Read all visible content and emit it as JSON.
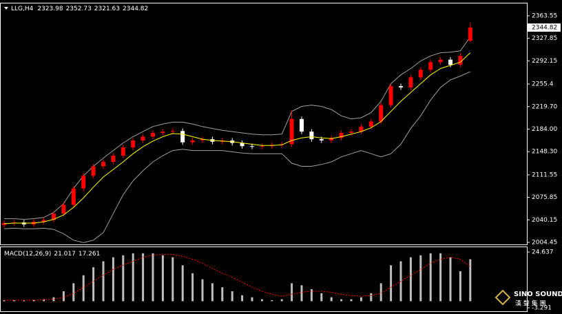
{
  "chart_data": [
    {
      "type": "candlestick",
      "title": "LLG,H4",
      "open": [
        2032,
        2035,
        2036,
        2033,
        2037,
        2040,
        2050,
        2064,
        2090,
        2110,
        2125,
        2132,
        2142,
        2155,
        2166,
        2172,
        2178,
        2180,
        2181,
        2163,
        2166,
        2168,
        2164,
        2166,
        2162,
        2157,
        2156,
        2157,
        2159,
        2160,
        2200,
        2180,
        2168,
        2166,
        2170,
        2178,
        2180,
        2188,
        2196,
        2222,
        2252,
        2250,
        2266,
        2278,
        2290,
        2294,
        2286,
        2323.98
      ],
      "high": [
        2039,
        2040,
        2040,
        2041,
        2044,
        2054,
        2068,
        2094,
        2114,
        2129,
        2136,
        2146,
        2159,
        2170,
        2176,
        2182,
        2184,
        2185,
        2185,
        2170,
        2172,
        2172,
        2170,
        2170,
        2166,
        2161,
        2161,
        2163,
        2164,
        2214,
        2204,
        2184,
        2172,
        2174,
        2182,
        2184,
        2192,
        2200,
        2226,
        2256,
        2256,
        2270,
        2282,
        2294,
        2298,
        2298,
        2304,
        2352.73
      ],
      "low": [
        2028,
        2031,
        2029,
        2029,
        2033,
        2036,
        2046,
        2060,
        2086,
        2106,
        2121,
        2128,
        2138,
        2151,
        2162,
        2168,
        2174,
        2176,
        2159,
        2159,
        2162,
        2160,
        2160,
        2158,
        2153,
        2152,
        2152,
        2153,
        2155,
        2156,
        2176,
        2164,
        2162,
        2162,
        2166,
        2174,
        2176,
        2184,
        2192,
        2218,
        2246,
        2246,
        2262,
        2274,
        2286,
        2282,
        2282,
        2321.63
      ],
      "close": [
        2035,
        2036,
        2033,
        2037,
        2040,
        2050,
        2064,
        2090,
        2110,
        2125,
        2132,
        2142,
        2155,
        2166,
        2172,
        2178,
        2180,
        2181,
        2163,
        2166,
        2168,
        2164,
        2166,
        2162,
        2157,
        2156,
        2157,
        2159,
        2160,
        2200,
        2180,
        2168,
        2166,
        2170,
        2178,
        2180,
        2188,
        2196,
        2222,
        2252,
        2250,
        2266,
        2278,
        2290,
        2294,
        2286,
        2300,
        2344.82
      ],
      "ma": [
        2034,
        2035,
        2035,
        2035,
        2037,
        2041,
        2048,
        2060,
        2075,
        2092,
        2108,
        2120,
        2132,
        2145,
        2156,
        2165,
        2172,
        2177,
        2176,
        2172,
        2168,
        2166,
        2165,
        2164,
        2162,
        2160,
        2158,
        2158,
        2159,
        2166,
        2170,
        2172,
        2170,
        2169,
        2172,
        2176,
        2180,
        2186,
        2196,
        2212,
        2228,
        2242,
        2256,
        2270,
        2280,
        2285,
        2290,
        2305
      ],
      "upper": [
        2042,
        2042,
        2041,
        2042,
        2044,
        2052,
        2066,
        2090,
        2110,
        2125,
        2138,
        2150,
        2162,
        2172,
        2180,
        2188,
        2192,
        2195,
        2195,
        2192,
        2188,
        2185,
        2182,
        2180,
        2178,
        2176,
        2175,
        2175,
        2176,
        2212,
        2220,
        2222,
        2220,
        2215,
        2205,
        2200,
        2202,
        2210,
        2228,
        2256,
        2270,
        2280,
        2292,
        2300,
        2305,
        2306,
        2308,
        2330
      ],
      "lower": [
        2026,
        2027,
        2026,
        2026,
        2027,
        2025,
        2018,
        2008,
        2004,
        2008,
        2020,
        2050,
        2080,
        2102,
        2118,
        2132,
        2142,
        2150,
        2152,
        2150,
        2150,
        2150,
        2150,
        2148,
        2146,
        2145,
        2145,
        2145,
        2145,
        2130,
        2125,
        2125,
        2128,
        2132,
        2140,
        2145,
        2150,
        2145,
        2140,
        2145,
        2160,
        2185,
        2205,
        2230,
        2250,
        2262,
        2268,
        2275
      ],
      "up_color": "#ff0000",
      "down_color": "#ffffff",
      "ma_color": "#ffff00",
      "band_color": "#a0a0a0",
      "ylim": [
        2001.2,
        2383.1
      ],
      "yticks": [
        2004.45,
        2040.15,
        2075.85,
        2111.55,
        {
          "value": 2148.3,
          "label": "2148.30"
        },
        {
          "value": 2184,
          "label": "2184.00"
        },
        {
          "value": 2219.7,
          "label": "2219.70"
        },
        2255.4,
        2292.15,
        2327.85,
        2363.55
      ]
    },
    {
      "type": "macd",
      "title": "MACD(12,26,9)",
      "histogram": [
        0.5,
        0.5,
        0.4,
        0.6,
        1,
        2,
        5,
        9,
        13,
        17,
        20,
        22,
        23,
        24,
        24,
        24,
        23,
        22,
        18,
        14,
        11,
        9,
        7,
        5,
        3,
        2,
        1,
        0.5,
        1,
        9,
        8,
        6,
        4,
        2,
        1,
        1,
        2,
        4,
        9,
        18,
        20,
        22,
        23,
        24,
        24,
        22,
        15,
        21.017
      ],
      "signal": [
        0.5,
        0.5,
        0.5,
        0.5,
        0.7,
        1,
        2,
        4,
        7,
        10,
        13,
        16,
        18,
        20,
        22,
        23,
        23.5,
        23.5,
        22.5,
        21,
        19,
        16.5,
        14,
        12,
        9.5,
        7,
        5,
        3.5,
        2.5,
        3.5,
        4.5,
        5,
        5,
        4.5,
        3.5,
        2.8,
        2.5,
        2.8,
        4,
        7,
        10,
        13,
        16,
        19,
        21,
        22,
        21,
        17.261
      ],
      "histogram_color": "#c0c0c0",
      "signal_color": "#ff0000",
      "ylim": [
        -3.291,
        24.637
      ],
      "yticks": [
        -3.291,
        24.637
      ]
    }
  ],
  "watermark": {
    "name": "SINO SOUND",
    "subtitle": "漢 聲 集 團"
  }
}
